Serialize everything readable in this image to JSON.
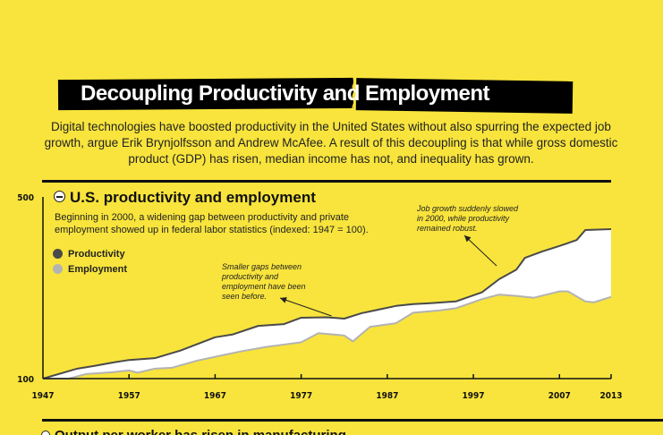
{
  "header": {
    "title_part1": "Decoupling Productivity and",
    "title_part2": "Employment"
  },
  "intro": "Digital technologies have boosted productivity in the United States without also spurring the expected job growth, argue Erik Brynjolfsson and Andrew McAfee. A result of this decoupling is that while gross domestic product (GDP) has risen, median income has not, and inequality has grown.",
  "section": {
    "title": "U.S. productivity and employment",
    "description": "Beginning in 2000, a widening gap between productivity and private employment showed up in federal labor statistics (indexed: 1947 = 100).",
    "collapse_icon": "minus-circle-icon"
  },
  "next_section_title_partial": "Output per worker has risen in manufacturing",
  "colors": {
    "background": "#f8e43c",
    "productivity": "#4a4a4a",
    "employment": "#b3b3b3",
    "gap_fill": "#ffffff"
  },
  "chart_data": {
    "type": "area",
    "title": "U.S. productivity and employment",
    "xlabel": "",
    "ylabel": "",
    "x_ticks": [
      1947,
      1957,
      1967,
      1977,
      1987,
      1997,
      2007,
      2013
    ],
    "y_ticks": [
      100,
      500
    ],
    "xlim": [
      1947,
      2013
    ],
    "ylim": [
      100,
      500
    ],
    "grid": false,
    "legend": {
      "position": "top-left",
      "entries": [
        "Productivity",
        "Employment"
      ]
    },
    "series": [
      {
        "name": "Productivity",
        "color": "#4a4a4a",
        "points": [
          [
            1947,
            100
          ],
          [
            1951,
            122
          ],
          [
            1953,
            128
          ],
          [
            1955,
            135
          ],
          [
            1957,
            141
          ],
          [
            1960,
            145
          ],
          [
            1963,
            162
          ],
          [
            1967,
            191
          ],
          [
            1969,
            197
          ],
          [
            1972,
            216
          ],
          [
            1975,
            220
          ],
          [
            1977,
            234
          ],
          [
            1980,
            235
          ],
          [
            1982,
            232
          ],
          [
            1984,
            244
          ],
          [
            1986,
            252
          ],
          [
            1988,
            260
          ],
          [
            1990,
            264
          ],
          [
            1992,
            266
          ],
          [
            1995,
            270
          ],
          [
            1998,
            290
          ],
          [
            2000,
            319
          ],
          [
            2002,
            340
          ],
          [
            2003,
            366
          ],
          [
            2005,
            380
          ],
          [
            2007,
            392
          ],
          [
            2009,
            405
          ],
          [
            2010,
            427
          ],
          [
            2013,
            429
          ]
        ]
      },
      {
        "name": "Employment",
        "color": "#b3b3b3",
        "points": [
          [
            1947,
            100
          ],
          [
            1950,
            100
          ],
          [
            1952,
            110
          ],
          [
            1955,
            114
          ],
          [
            1957,
            118
          ],
          [
            1958,
            113
          ],
          [
            1960,
            122
          ],
          [
            1962,
            124
          ],
          [
            1965,
            140
          ],
          [
            1968,
            152
          ],
          [
            1970,
            160
          ],
          [
            1973,
            170
          ],
          [
            1975,
            175
          ],
          [
            1977,
            180
          ],
          [
            1979,
            200
          ],
          [
            1982,
            195
          ],
          [
            1983,
            182
          ],
          [
            1985,
            214
          ],
          [
            1988,
            222
          ],
          [
            1990,
            245
          ],
          [
            1993,
            250
          ],
          [
            1995,
            255
          ],
          [
            1998,
            275
          ],
          [
            2000,
            285
          ],
          [
            2002,
            282
          ],
          [
            2004,
            278
          ],
          [
            2007,
            292
          ],
          [
            2008,
            292
          ],
          [
            2010,
            270
          ],
          [
            2011,
            268
          ],
          [
            2013,
            280
          ]
        ]
      }
    ],
    "annotations": [
      {
        "text": "Smaller gaps between productivity and employment have been seen before.",
        "points_to_year": 1980
      },
      {
        "text": "Job growth suddenly slowed in 2000, while productivity remained robust.",
        "points_to_year": 2000
      }
    ]
  }
}
